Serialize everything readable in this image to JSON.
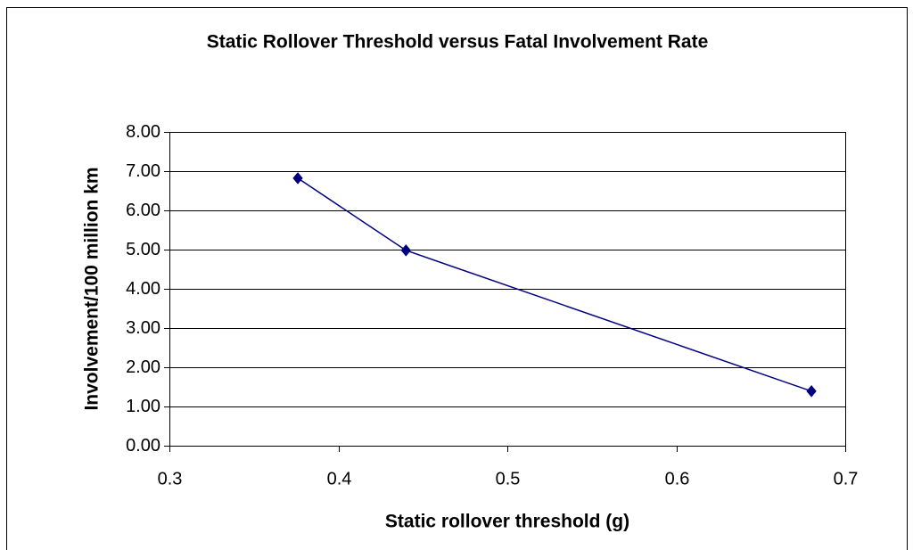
{
  "chart_data": {
    "type": "line",
    "title": "Static Rollover Threshold versus Fatal Involvement Rate",
    "x_label": "Static rollover threshold (g)",
    "y_label": "Involvement/100 million km",
    "x": [
      0.376,
      0.44,
      0.68
    ],
    "values": [
      6.82,
      4.98,
      1.39
    ],
    "color": "#000080",
    "xlim": [
      0.3,
      0.7
    ],
    "xticks": [
      0.3,
      0.4,
      0.5,
      0.6,
      0.7
    ],
    "ylim": [
      0,
      8
    ],
    "yticks": [
      {
        "value": 0,
        "label": "0.00"
      },
      {
        "value": 1,
        "label": "1.00"
      },
      {
        "value": 2,
        "label": "2.00"
      },
      {
        "value": 3,
        "label": "3.00"
      },
      {
        "value": 4,
        "label": "4.00"
      },
      {
        "value": 5,
        "label": "5.00"
      },
      {
        "value": 6,
        "label": "6.00"
      },
      {
        "value": 7,
        "label": "7.00"
      },
      {
        "value": 8,
        "label": "8.00"
      }
    ],
    "grid": true
  }
}
